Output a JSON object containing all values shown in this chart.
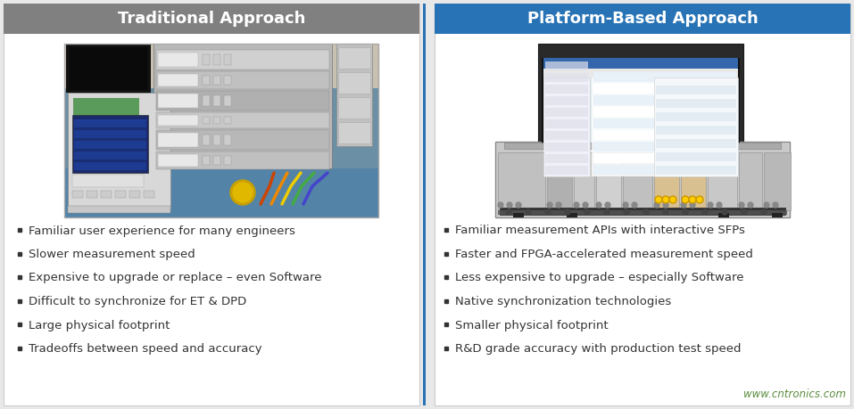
{
  "background_color": "#e8e8e8",
  "left_panel_bg": "#eeeeee",
  "right_panel_bg": "#eeeeee",
  "left_header_color": "#808080",
  "right_header_color": "#2873b5",
  "left_title": "Traditional Approach",
  "right_title": "Platform-Based Approach",
  "header_text_color": "#ffffff",
  "header_font_size": 13,
  "left_bullets": [
    "Familiar user experience for many engineers",
    "Slower measurement speed",
    "Expensive to upgrade or replace – even Software",
    "Difficult to synchronize for ET & DPD",
    "Large physical footprint",
    "Tradeoffs between speed and accuracy"
  ],
  "right_bullets": [
    "Familiar measurement APIs with interactive SFPs",
    "Faster and FPGA-accelerated measurement speed",
    "Less expensive to upgrade – especially Software",
    "Native synchronization technologies",
    "Smaller physical footprint",
    "R&D grade accuracy with production test speed"
  ],
  "bullet_color": "#333333",
  "bullet_font_size": 9.5,
  "watermark_text": "www.cntronics.com",
  "watermark_color": "#5B8C3E",
  "divider_color": "#2873b5",
  "panel_border_color": "#cccccc"
}
